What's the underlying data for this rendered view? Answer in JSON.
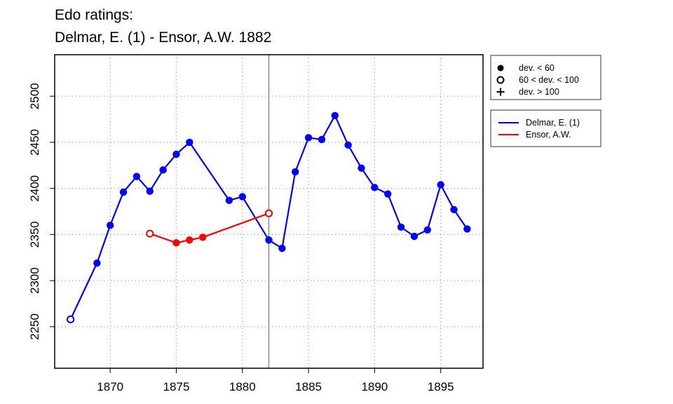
{
  "chart_data": {
    "type": "line",
    "title": "Edo ratings:",
    "subtitle": "Delmar, E. (1) - Ensor, A.W. 1882",
    "xlabel": "",
    "ylabel": "",
    "xlim": [
      1865.8,
      1898.2
    ],
    "ylim": [
      2205,
      2545
    ],
    "x_ticks": [
      1870,
      1875,
      1880,
      1885,
      1890,
      1895
    ],
    "y_ticks": [
      2250,
      2300,
      2350,
      2400,
      2450,
      2500
    ],
    "grid": true,
    "reference_line_x": 1882,
    "marker_legend": [
      {
        "symbol": "filled-circle",
        "label": "dev. < 60"
      },
      {
        "symbol": "open-circle",
        "label": "60 < dev. < 100"
      },
      {
        "symbol": "plus",
        "label": "dev. > 100"
      }
    ],
    "series": [
      {
        "name": "Delmar, E. (1)",
        "color": "#0000ff",
        "points": [
          {
            "x": 1867,
            "y": 2258,
            "marker": "open-circle"
          },
          {
            "x": 1869,
            "y": 2319,
            "marker": "filled-circle"
          },
          {
            "x": 1870,
            "y": 2360,
            "marker": "filled-circle"
          },
          {
            "x": 1871,
            "y": 2396,
            "marker": "filled-circle"
          },
          {
            "x": 1872,
            "y": 2413,
            "marker": "filled-circle"
          },
          {
            "x": 1873,
            "y": 2397,
            "marker": "filled-circle"
          },
          {
            "x": 1874,
            "y": 2420,
            "marker": "filled-circle"
          },
          {
            "x": 1875,
            "y": 2437,
            "marker": "filled-circle"
          },
          {
            "x": 1876,
            "y": 2450,
            "marker": "filled-circle"
          },
          {
            "x": 1879,
            "y": 2387,
            "marker": "filled-circle"
          },
          {
            "x": 1880,
            "y": 2391,
            "marker": "filled-circle"
          },
          {
            "x": 1882,
            "y": 2344,
            "marker": "filled-circle"
          },
          {
            "x": 1883,
            "y": 2335,
            "marker": "filled-circle"
          },
          {
            "x": 1884,
            "y": 2418,
            "marker": "filled-circle"
          },
          {
            "x": 1885,
            "y": 2455,
            "marker": "filled-circle"
          },
          {
            "x": 1886,
            "y": 2453,
            "marker": "filled-circle"
          },
          {
            "x": 1887,
            "y": 2479,
            "marker": "filled-circle"
          },
          {
            "x": 1888,
            "y": 2447,
            "marker": "filled-circle"
          },
          {
            "x": 1889,
            "y": 2422,
            "marker": "filled-circle"
          },
          {
            "x": 1890,
            "y": 2401,
            "marker": "filled-circle"
          },
          {
            "x": 1891,
            "y": 2394,
            "marker": "filled-circle"
          },
          {
            "x": 1892,
            "y": 2358,
            "marker": "filled-circle"
          },
          {
            "x": 1893,
            "y": 2348,
            "marker": "filled-circle"
          },
          {
            "x": 1894,
            "y": 2355,
            "marker": "filled-circle"
          },
          {
            "x": 1895,
            "y": 2404,
            "marker": "filled-circle"
          },
          {
            "x": 1896,
            "y": 2377,
            "marker": "filled-circle"
          },
          {
            "x": 1897,
            "y": 2356,
            "marker": "filled-circle"
          }
        ]
      },
      {
        "name": "Ensor, A.W.",
        "color": "#ff0000",
        "points": [
          {
            "x": 1873,
            "y": 2351,
            "marker": "open-circle"
          },
          {
            "x": 1875,
            "y": 2341,
            "marker": "filled-circle"
          },
          {
            "x": 1876,
            "y": 2344,
            "marker": "filled-circle"
          },
          {
            "x": 1877,
            "y": 2347,
            "marker": "filled-circle"
          },
          {
            "x": 1882,
            "y": 2373,
            "marker": "open-circle"
          }
        ]
      }
    ]
  }
}
